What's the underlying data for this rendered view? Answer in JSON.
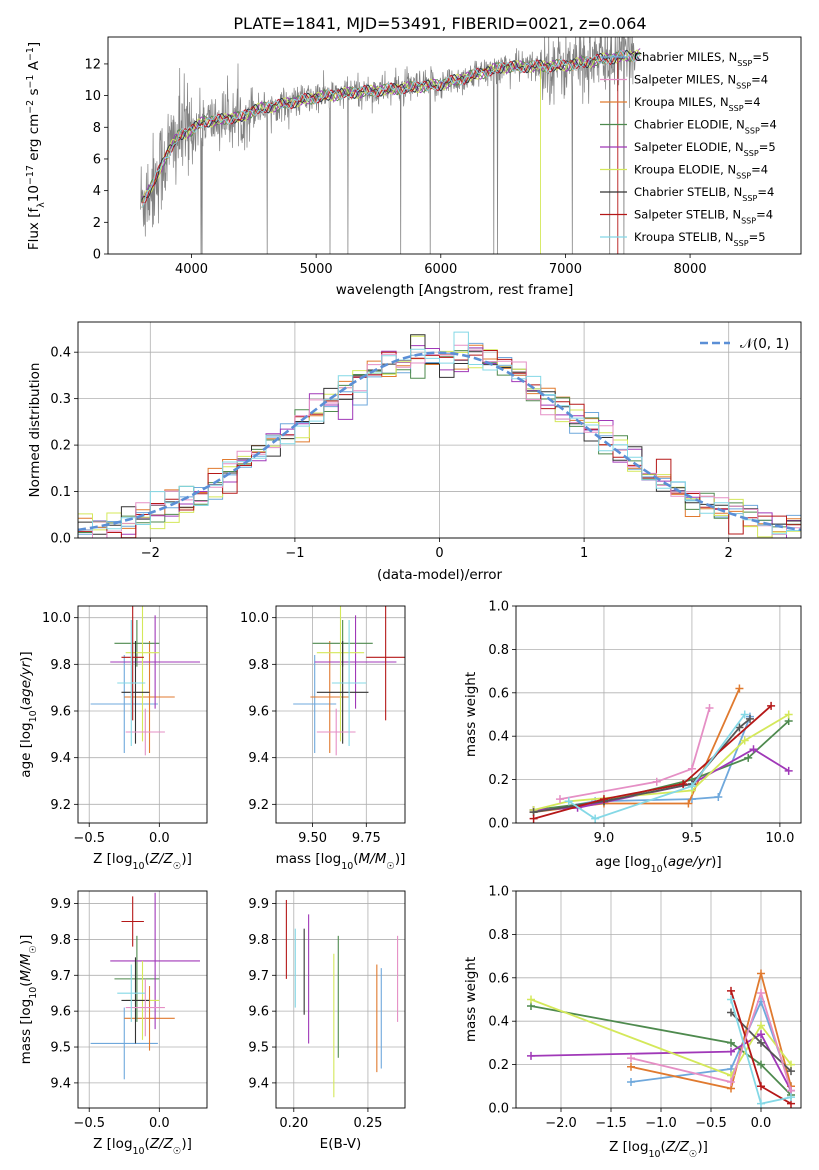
{
  "figure_title": "PLATE=1841, MJD=53491, FIBERID=0021, z=0.064",
  "colors": [
    "#6fa8dc",
    "#e07a2f",
    "#2a7d2a",
    "#c44ec4",
    "#c9e24a",
    "#4a4a4a",
    "#b51818",
    "#e58fc5",
    "#84e0e6",
    "#6f8f5f",
    "#a038b8",
    "#d8f060",
    "#1a1a1a"
  ],
  "chart_data": [
    {
      "id": "spectrum",
      "type": "line",
      "xlabel": "wavelength [Angstrom, rest frame]",
      "ylabel": "Flux [f_λ 10^-17 erg cm^-2 s^-1 A^-1]",
      "xlim": [
        3330,
        8890
      ],
      "ylim": [
        0,
        13.7
      ],
      "xticks": [
        4000,
        5000,
        6000,
        7000,
        8000
      ],
      "yticks": [
        0,
        2,
        4,
        6,
        8,
        10,
        12
      ],
      "grid": false,
      "legend": "right",
      "data_series": {
        "name": "data",
        "color": "#808080"
      },
      "anchor_x": [
        3600,
        3700,
        3800,
        3900,
        4000,
        4100,
        4200,
        4300,
        4400,
        4500,
        4700,
        5000,
        5300,
        5600,
        6000,
        6500,
        7000,
        7300,
        7600
      ],
      "anchor_y": [
        3.3,
        4.5,
        6.3,
        7.5,
        7.8,
        8.4,
        8.4,
        8.6,
        8.6,
        9.1,
        9.4,
        9.9,
        10.2,
        10.4,
        10.7,
        11.8,
        11.9,
        12.3,
        12.6
      ],
      "series": [
        {
          "name": "Chabrier MILES, N_SSP=5",
          "color": "#6fa8dc"
        },
        {
          "name": "Salpeter MILES, N_SSP=4",
          "color": "#e58fc5"
        },
        {
          "name": "Kroupa MILES, N_SSP=4",
          "color": "#e07a2f"
        },
        {
          "name": "Chabrier ELODIE, N_SSP=4",
          "color": "#4e8a4e"
        },
        {
          "name": "Salpeter ELODIE, N_SSP=5",
          "color": "#a038b8"
        },
        {
          "name": "Kroupa ELODIE, N_SSP=4",
          "color": "#d4e85a"
        },
        {
          "name": "Chabrier STELIB, N_SSP=4",
          "color": "#333333"
        },
        {
          "name": "Salpeter STELIB, N_SSP=4",
          "color": "#b51818"
        },
        {
          "name": "Kroupa STELIB, N_SSP=5",
          "color": "#84d8e6"
        }
      ]
    },
    {
      "id": "residuals",
      "type": "bar",
      "xlabel": "(data-model)/error",
      "ylabel": "Normed distribution",
      "xlim": [
        -2.5,
        2.5
      ],
      "ylim": [
        0,
        0.465
      ],
      "xticks": [
        -2,
        -1,
        0,
        1,
        2
      ],
      "yticks": [
        0.0,
        0.1,
        0.2,
        0.3,
        0.4
      ],
      "grid": true,
      "legend": "top-right",
      "legend_label": "𝒩(0, 1)",
      "bins": 50,
      "series_colors": [
        "#6fa8dc",
        "#e07a2f",
        "#4e8a4e",
        "#a038b8",
        "#d4e85a",
        "#333333",
        "#b51818",
        "#e58fc5",
        "#84d8e6"
      ]
    },
    {
      "id": "age-vs-Z",
      "type": "scatter",
      "xlabel": "Z [log10(Z/Z☉)]",
      "ylabel": "age [log10(age/yr)]",
      "xlim": [
        -0.58,
        0.34
      ],
      "ylim": [
        9.12,
        10.05
      ],
      "xticks": [
        -0.5,
        0.0
      ],
      "yticks": [
        9.2,
        9.4,
        9.6,
        9.8,
        10.0
      ],
      "points": [
        {
          "x": -0.25,
          "xe": 0.24,
          "y": 9.63,
          "ye": 0.21,
          "c": "#6fa8dc"
        },
        {
          "x": -0.07,
          "xe": 0.18,
          "y": 9.66,
          "ye": 0.24,
          "c": "#e07a2f"
        },
        {
          "x": -0.16,
          "xe": 0.16,
          "y": 9.89,
          "ye": 0.1,
          "c": "#4e8a4e"
        },
        {
          "x": -0.03,
          "xe": 0.32,
          "y": 9.81,
          "ye": 0.2,
          "c": "#a038b8"
        },
        {
          "x": -0.12,
          "xe": 0.12,
          "y": 9.85,
          "ye": 0.38,
          "c": "#d4e85a"
        },
        {
          "x": -0.17,
          "xe": 0.1,
          "y": 9.68,
          "ye": 0.22,
          "c": "#333333"
        },
        {
          "x": -0.19,
          "xe": 0.08,
          "y": 9.83,
          "ye": 0.27,
          "c": "#b51818"
        },
        {
          "x": -0.1,
          "xe": 0.14,
          "y": 9.51,
          "ye": 0.1,
          "c": "#e58fc5"
        },
        {
          "x": -0.2,
          "xe": 0.1,
          "y": 9.72,
          "ye": 0.27,
          "c": "#84d8e6"
        }
      ]
    },
    {
      "id": "age-vs-mass",
      "type": "scatter",
      "xlabel": "mass [log10(M/M☉)]",
      "xlim": [
        9.33,
        9.93
      ],
      "ylim": [
        9.12,
        10.05
      ],
      "xticks": [
        9.5,
        9.75
      ],
      "yticks": [
        9.2,
        9.4,
        9.6,
        9.8,
        10.0
      ],
      "points": [
        {
          "x": 9.51,
          "xe": 0.1,
          "y": 9.63,
          "ye": 0.21,
          "c": "#6fa8dc"
        },
        {
          "x": 9.58,
          "xe": 0.09,
          "y": 9.66,
          "ye": 0.24,
          "c": "#e07a2f"
        },
        {
          "x": 9.64,
          "xe": 0.14,
          "y": 9.89,
          "ye": 0.1,
          "c": "#4e8a4e"
        },
        {
          "x": 9.7,
          "xe": 0.19,
          "y": 9.81,
          "ye": 0.2,
          "c": "#a038b8"
        },
        {
          "x": 9.63,
          "xe": 0.11,
          "y": 9.85,
          "ye": 0.38,
          "c": "#d4e85a"
        },
        {
          "x": 9.64,
          "xe": 0.12,
          "y": 9.68,
          "ye": 0.22,
          "c": "#333333"
        },
        {
          "x": 9.84,
          "xe": 0.09,
          "y": 9.83,
          "ye": 0.27,
          "c": "#b51818"
        },
        {
          "x": 9.61,
          "xe": 0.09,
          "y": 9.51,
          "ye": 0.1,
          "c": "#e58fc5"
        },
        {
          "x": 9.67,
          "xe": 0.08,
          "y": 9.72,
          "ye": 0.27,
          "c": "#84d8e6"
        }
      ]
    },
    {
      "id": "massweight-vs-age",
      "type": "line",
      "ylabel": "mass weight",
      "xlabel": "age [log10(age/yr)]",
      "xlim": [
        8.5,
        10.12
      ],
      "ylim": [
        0,
        1.0
      ],
      "xticks": [
        9.0,
        9.5,
        10.0
      ],
      "yticks": [
        0.0,
        0.2,
        0.4,
        0.6,
        0.8,
        1.0
      ],
      "grid": true,
      "series": [
        {
          "c": "#6fa8dc",
          "x": [
            8.6,
            8.95,
            9.5,
            9.65,
            9.83
          ],
          "y": [
            0.05,
            0.1,
            0.11,
            0.12,
            0.49
          ]
        },
        {
          "c": "#e07a2f",
          "x": [
            8.6,
            9.0,
            9.48,
            9.77
          ],
          "y": [
            0.05,
            0.09,
            0.09,
            0.62
          ]
        },
        {
          "c": "#4e8a4e",
          "x": [
            8.6,
            9.0,
            9.5,
            9.82,
            10.05
          ],
          "y": [
            0.06,
            0.1,
            0.2,
            0.3,
            0.47
          ]
        },
        {
          "c": "#a038b8",
          "x": [
            8.6,
            8.85,
            9.5,
            9.85,
            10.05
          ],
          "y": [
            0.06,
            0.07,
            0.18,
            0.34,
            0.24
          ]
        },
        {
          "c": "#d4e85a",
          "x": [
            8.6,
            8.8,
            9.5,
            9.8,
            10.05
          ],
          "y": [
            0.06,
            0.1,
            0.15,
            0.38,
            0.5
          ]
        },
        {
          "c": "#555555",
          "x": [
            8.6,
            9.0,
            9.5,
            9.77,
            9.83
          ],
          "y": [
            0.05,
            0.1,
            0.18,
            0.44,
            0.48
          ]
        },
        {
          "c": "#b51818",
          "x": [
            8.6,
            9.0,
            9.45,
            9.95
          ],
          "y": [
            0.02,
            0.11,
            0.18,
            0.54
          ]
        },
        {
          "c": "#e58fc5",
          "x": [
            8.75,
            9.3,
            9.5,
            9.6
          ],
          "y": [
            0.11,
            0.19,
            0.25,
            0.53
          ]
        },
        {
          "c": "#84d8e6",
          "x": [
            8.8,
            8.95,
            9.5,
            9.8
          ],
          "y": [
            0.1,
            0.02,
            0.17,
            0.5
          ]
        }
      ]
    },
    {
      "id": "mass-vs-Z",
      "type": "scatter",
      "xlabel": "Z [log10(Z/Z☉)]",
      "ylabel": "mass [log10(M/M☉)]",
      "xlim": [
        -0.58,
        0.34
      ],
      "ylim": [
        9.33,
        9.935
      ],
      "xticks": [
        -0.5,
        0.0
      ],
      "yticks": [
        9.4,
        9.5,
        9.6,
        9.7,
        9.8,
        9.9
      ],
      "points": [
        {
          "x": -0.25,
          "xe": 0.24,
          "y": 9.51,
          "ye": 0.1,
          "c": "#6fa8dc"
        },
        {
          "x": -0.07,
          "xe": 0.18,
          "y": 9.58,
          "ye": 0.09,
          "c": "#e07a2f"
        },
        {
          "x": -0.16,
          "xe": 0.16,
          "y": 9.69,
          "ye": 0.12,
          "c": "#4e8a4e"
        },
        {
          "x": -0.03,
          "xe": 0.32,
          "y": 9.74,
          "ye": 0.19,
          "c": "#a038b8"
        },
        {
          "x": -0.12,
          "xe": 0.12,
          "y": 9.63,
          "ye": 0.11,
          "c": "#d4e85a"
        },
        {
          "x": -0.17,
          "xe": 0.1,
          "y": 9.63,
          "ye": 0.12,
          "c": "#333333"
        },
        {
          "x": -0.19,
          "xe": 0.08,
          "y": 9.85,
          "ye": 0.07,
          "c": "#b51818"
        },
        {
          "x": -0.1,
          "xe": 0.14,
          "y": 9.61,
          "ye": 0.08,
          "c": "#e58fc5"
        },
        {
          "x": -0.2,
          "xe": 0.1,
          "y": 9.65,
          "ye": 0.08,
          "c": "#84d8e6"
        }
      ]
    },
    {
      "id": "mass-vs-EBV",
      "type": "scatter",
      "xlabel": "E(B-V)",
      "xlim": [
        0.188,
        0.275
      ],
      "ylim": [
        9.33,
        9.935
      ],
      "xticks": [
        0.2,
        0.25
      ],
      "yticks": [
        9.4,
        9.5,
        9.6,
        9.7,
        9.8,
        9.9
      ],
      "points": [
        {
          "x": 0.195,
          "y": 9.8,
          "ye": 0.11,
          "c": "#b51818"
        },
        {
          "x": 0.201,
          "y": 9.72,
          "ye": 0.11,
          "c": "#84d8e6"
        },
        {
          "x": 0.207,
          "y": 9.71,
          "ye": 0.12,
          "c": "#333333"
        },
        {
          "x": 0.21,
          "y": 9.69,
          "ye": 0.18,
          "c": "#a038b8"
        },
        {
          "x": 0.227,
          "y": 9.56,
          "ye": 0.2,
          "c": "#d4e85a"
        },
        {
          "x": 0.23,
          "y": 9.64,
          "ye": 0.17,
          "c": "#4e8a4e"
        },
        {
          "x": 0.256,
          "y": 9.58,
          "ye": 0.15,
          "c": "#e07a2f"
        },
        {
          "x": 0.259,
          "y": 9.58,
          "ye": 0.14,
          "c": "#6fa8dc"
        },
        {
          "x": 0.27,
          "y": 9.69,
          "ye": 0.12,
          "c": "#e58fc5"
        }
      ]
    },
    {
      "id": "massweight-vs-Z",
      "type": "line",
      "ylabel": "mass weight",
      "xlabel": "Z [log10(Z/Z☉)]",
      "xlim": [
        -2.45,
        0.4
      ],
      "ylim": [
        0,
        1.0
      ],
      "xticks": [
        -2.0,
        -1.5,
        -1.0,
        -0.5,
        0.0
      ],
      "yticks": [
        0.0,
        0.2,
        0.4,
        0.6,
        0.8,
        1.0
      ],
      "grid": true,
      "series": [
        {
          "c": "#6fa8dc",
          "x": [
            -1.3,
            -0.3,
            0.0,
            0.3
          ],
          "y": [
            0.12,
            0.18,
            0.49,
            0.1
          ]
        },
        {
          "c": "#e07a2f",
          "x": [
            -1.3,
            -0.3,
            0.0,
            0.3
          ],
          "y": [
            0.19,
            0.09,
            0.62,
            0.1
          ]
        },
        {
          "c": "#4e8a4e",
          "x": [
            -2.3,
            -0.3,
            0.0,
            0.3
          ],
          "y": [
            0.47,
            0.3,
            0.2,
            0.06
          ]
        },
        {
          "c": "#a038b8",
          "x": [
            -2.3,
            -0.3,
            0.0,
            0.3
          ],
          "y": [
            0.24,
            0.26,
            0.34,
            0.08
          ]
        },
        {
          "c": "#d4e85a",
          "x": [
            -2.3,
            -0.3,
            0.0,
            0.3
          ],
          "y": [
            0.5,
            0.15,
            0.38,
            0.2
          ]
        },
        {
          "c": "#555555",
          "x": [
            -0.3,
            0.0,
            0.3
          ],
          "y": [
            0.44,
            0.3,
            0.17
          ]
        },
        {
          "c": "#b51818",
          "x": [
            -0.3,
            0.0,
            0.3
          ],
          "y": [
            0.54,
            0.1,
            0.02
          ]
        },
        {
          "c": "#e58fc5",
          "x": [
            -1.3,
            -0.3,
            0.0,
            0.3
          ],
          "y": [
            0.23,
            0.12,
            0.53,
            0.08
          ]
        },
        {
          "c": "#84d8e6",
          "x": [
            -0.3,
            0.0,
            0.3
          ],
          "y": [
            0.5,
            0.02,
            0.05
          ]
        }
      ]
    }
  ]
}
